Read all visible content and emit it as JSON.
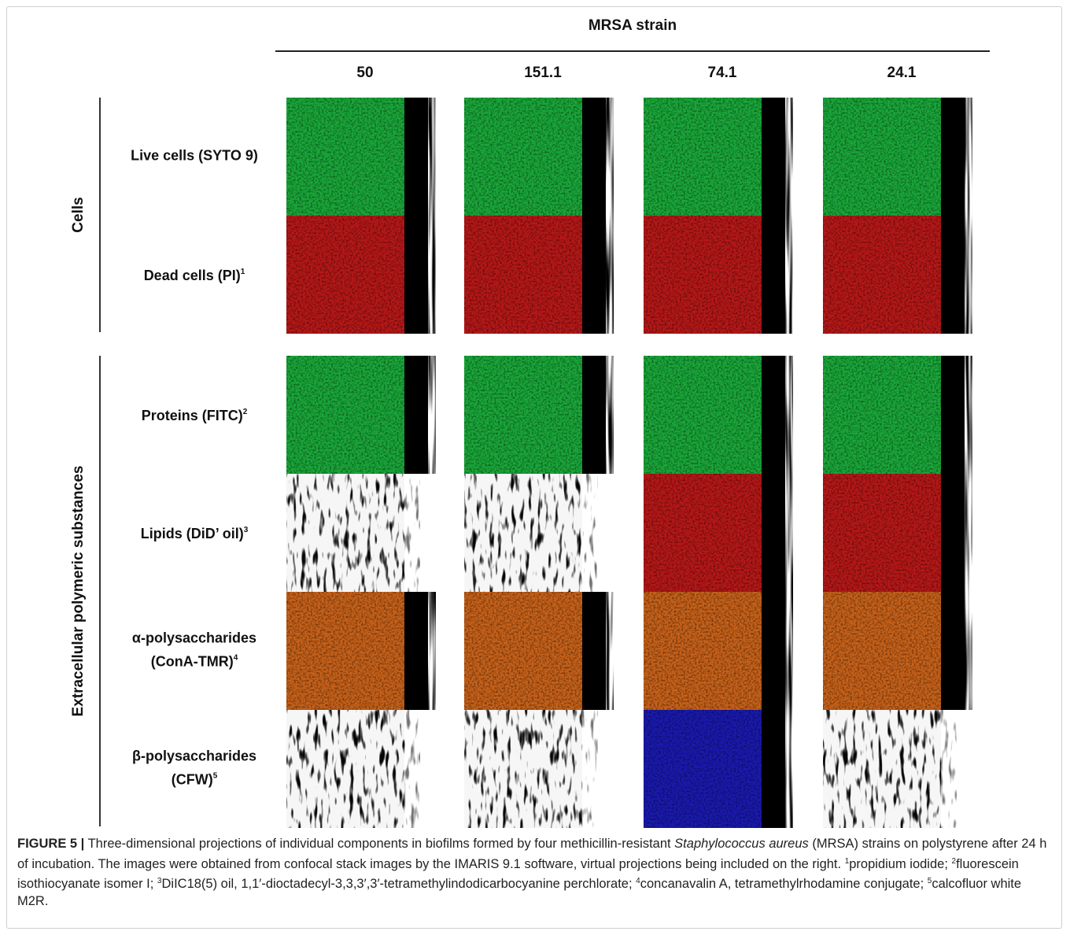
{
  "figure": {
    "header": "MRSA strain",
    "columns": [
      "50",
      "151.1",
      "74.1",
      "24.1"
    ],
    "groups": [
      {
        "label": "Cells"
      },
      {
        "label": "Extracellular polymeric substances"
      }
    ],
    "rows": [
      {
        "lines": [
          "Live cells (SYTO 9)"
        ],
        "sup": "",
        "stain": "green"
      },
      {
        "lines": [
          "Dead cells (PI)"
        ],
        "sup": "1",
        "stain": "red"
      },
      {
        "lines": [
          "Proteins (FITC)"
        ],
        "sup": "2",
        "stain": "green"
      },
      {
        "lines": [
          "Lipids (DiD’ oil)"
        ],
        "sup": "3",
        "stain": "red"
      },
      {
        "lines": [
          "α-polysaccharides",
          "(ConA-TMR)"
        ],
        "sup": "4",
        "stain": "orange"
      },
      {
        "lines": [
          "β-polysaccharides",
          "(CFW)"
        ],
        "sup": "5",
        "stain": "blue"
      }
    ],
    "colors": {
      "green": "#1aa83a",
      "red": "#b81818",
      "orange": "#c8621a",
      "blue": "#1a1ab0",
      "projection": "#000000"
    }
  },
  "caption": {
    "figure_id": "FIGURE 5 |",
    "text1": " Three-dimensional projections of individual components in biofilms formed by four methicillin-resistant ",
    "species": "Staphylococcus aureus",
    "text2": " (MRSA) strains on polystyrene after 24 h of incubation. The images were obtained from confocal stack images by the IMARIS 9.1 software, virtual projections being included on the right. ",
    "fn1_mark": "1",
    "fn1": "propidium iodide; ",
    "fn2_mark": "2",
    "fn2": "fluorescein isothiocyanate isomer I; ",
    "fn3_mark": "3",
    "fn3": "DiIC18(5) oil, 1,1′-dioctadecyl-3,3,3′,3′-tetramethylindodicarbocyanine perchlorate; ",
    "fn4_mark": "4",
    "fn4": "concanavalin A, tetramethylrhodamine conjugate; ",
    "fn5_mark": "5",
    "fn5": "calcofluor white M2R."
  }
}
